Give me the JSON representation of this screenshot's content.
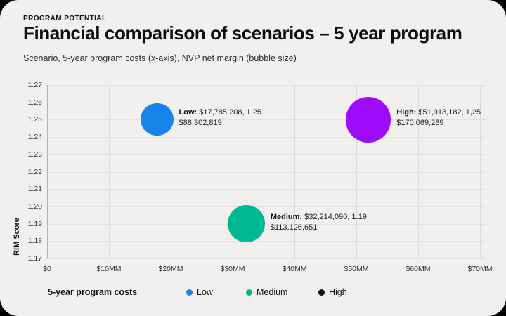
{
  "header": {
    "kicker": "PROGRAM POTENTIAL",
    "title": "Financial comparison of scenarios – 5 year program",
    "subtitle": "Scenario, 5-year program costs (x-axis), NVP net margin (bubble size)"
  },
  "chart_data": {
    "type": "scatter",
    "subtype": "bubble",
    "title": "Financial comparison of scenarios – 5 year program",
    "xlabel": "5-year program costs",
    "ylabel": "RIM Score",
    "xlim": [
      0,
      70000000
    ],
    "ylim": [
      1.17,
      1.27
    ],
    "grid": true,
    "x_ticks": [
      "$0",
      "$10MM",
      "$20MM",
      "$30MM",
      "$40MM",
      "$50MM",
      "$60MM",
      "$70MM"
    ],
    "y_ticks": [
      "1.27",
      "1.26",
      "1.25",
      "1.24",
      "1.23",
      "1.22",
      "1.21",
      "1.20",
      "1.19",
      "1.18",
      "1.17"
    ],
    "series": [
      {
        "name": "Low",
        "x": 17785208,
        "y": 1.25,
        "size": 86302819,
        "color": "#1883E8",
        "label_bold": "Low:",
        "label_value": "$17,785,208, 1.25",
        "label_size": "$86,302,819"
      },
      {
        "name": "Medium",
        "x": 32214090,
        "y": 1.19,
        "size": 113126651,
        "color": "#00B992",
        "label_bold": "Medium:",
        "label_value": "$32,214,090, 1.19",
        "label_size": "$113,126,651"
      },
      {
        "name": "High",
        "x": 51918182,
        "y": 1.25,
        "size": 170069289,
        "color": "#9E0BFA",
        "label_bold": "High:",
        "label_value": "$51,918,182, 1,25",
        "label_size": "$170,069,289"
      }
    ]
  },
  "legend": {
    "title": "5-year program costs",
    "items": [
      {
        "label": "Low",
        "color": "#1883E8"
      },
      {
        "label": "Medium",
        "color": "#00B992"
      },
      {
        "label": "High",
        "color": "#101010"
      }
    ],
    "position": "bottom"
  },
  "colors": {
    "card_background": "#F1F0EE",
    "page_background": "#000000",
    "grid_horizontal": "#E3E2E0",
    "grid_vertical": "#DBDAD8",
    "axis": "#B4B3B1",
    "text": "#111111"
  }
}
